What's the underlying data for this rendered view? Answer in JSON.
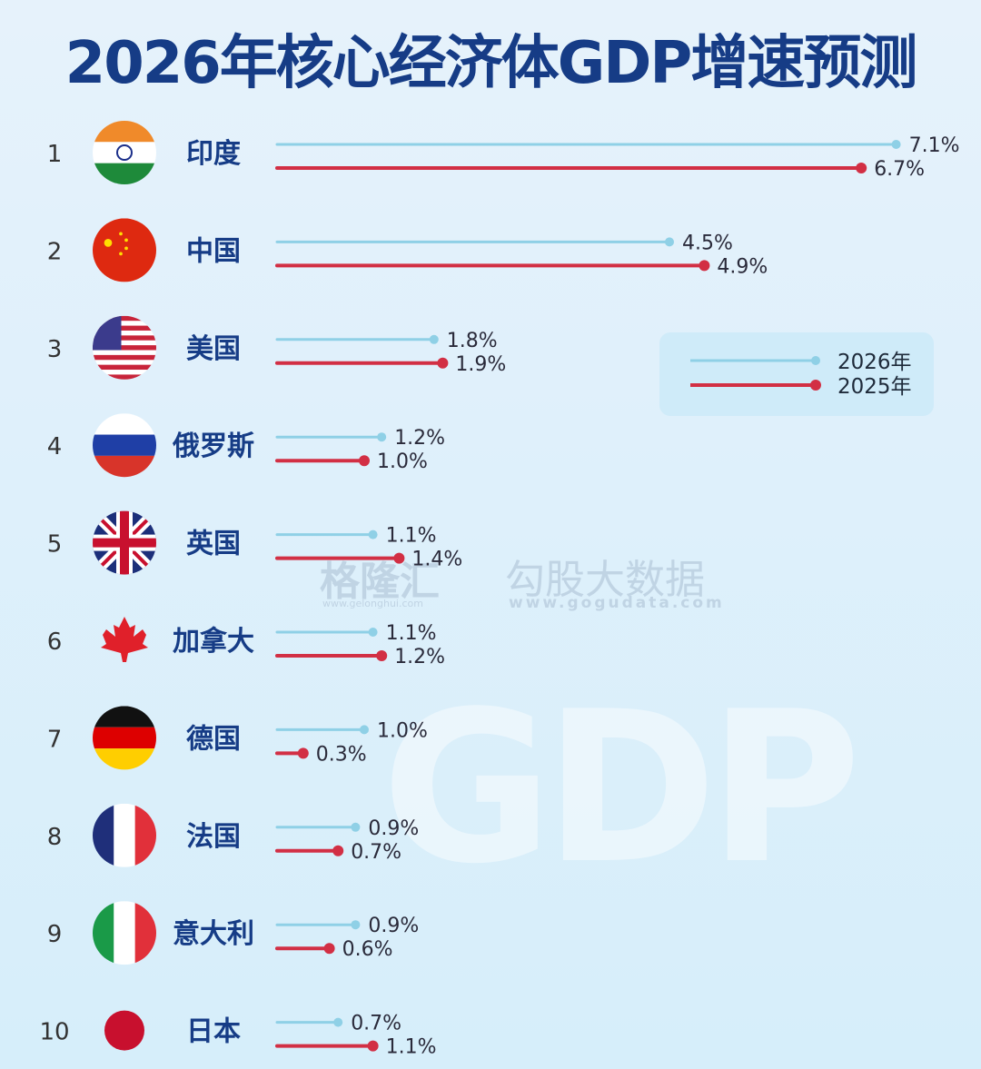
{
  "chart_data": {
    "type": "bar",
    "orientation": "horizontal",
    "title": "2026年核心经济体GDP增速预测",
    "unit": "%",
    "categories": [
      "印度",
      "中国",
      "美国",
      "俄罗斯",
      "英国",
      "加拿大",
      "德国",
      "法国",
      "意大利",
      "日本"
    ],
    "ranks": [
      "1",
      "2",
      "3",
      "4",
      "5",
      "6",
      "7",
      "8",
      "9",
      "10"
    ],
    "series": [
      {
        "name": "2026年",
        "color": "#8fd0e6",
        "values": [
          7.1,
          4.5,
          1.8,
          1.2,
          1.1,
          1.1,
          1.0,
          0.9,
          0.9,
          0.7
        ]
      },
      {
        "name": "2025年",
        "color": "#d22f44",
        "values": [
          6.7,
          4.9,
          1.9,
          1.0,
          1.4,
          1.2,
          0.3,
          0.7,
          0.6,
          1.1
        ]
      }
    ],
    "value_labels": [
      [
        "7.1%",
        "4.5%",
        "1.8%",
        "1.2%",
        "1.1%",
        "1.1%",
        "1.0%",
        "0.9%",
        "0.9%",
        "0.7%"
      ],
      [
        "6.7%",
        "4.9%",
        "1.9%",
        "1.0%",
        "1.4%",
        "1.2%",
        "0.3%",
        "0.7%",
        "0.6%",
        "1.1%"
      ]
    ],
    "flags": [
      "india",
      "china",
      "usa",
      "russia",
      "uk",
      "canada",
      "germany",
      "france",
      "italy",
      "japan"
    ],
    "legend_position": "right",
    "grid": false
  },
  "watermarks": {
    "gelonghui": "格隆汇",
    "gelonghui_url": "www.gelonghui.com",
    "gogu": "勾股大数据",
    "gogu_url": "www.gogudata.com",
    "background": "GDP"
  },
  "colors": {
    "title": "#163c86",
    "label": "#163c86"
  }
}
